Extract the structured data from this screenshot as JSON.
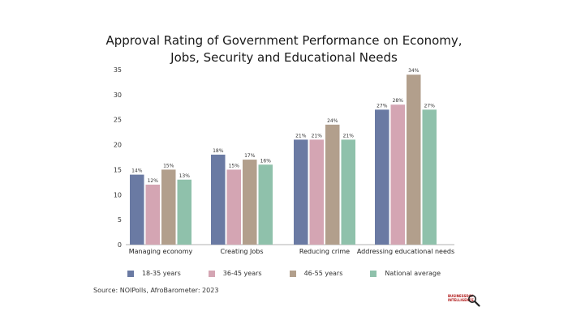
{
  "chart_data": {
    "type": "bar",
    "title_lines": [
      "Approval Rating of Government Performance  on Economy,",
      "Jobs, Security and Educational Needs"
    ],
    "categories": [
      "Managing economy",
      "Creating Jobs",
      "Reducing crime",
      "Addressing educational needs"
    ],
    "series": [
      {
        "name": "18-35 years",
        "color": "#6a7aa3",
        "values": [
          14,
          18,
          21,
          27
        ],
        "labels": [
          "14%",
          "18%",
          "21%",
          "27%"
        ]
      },
      {
        "name": "36-45 years",
        "color": "#d4a5b3",
        "values": [
          12,
          15,
          21,
          28
        ],
        "labels": [
          "12%",
          "15%",
          "21%",
          "28%"
        ]
      },
      {
        "name": "46-55 years",
        "color": "#b29f8c",
        "values": [
          15,
          17,
          24,
          34
        ],
        "labels": [
          "15%",
          "17%",
          "24%",
          "34%"
        ]
      },
      {
        "name": "National average",
        "color": "#8fc1ab",
        "values": [
          13,
          16,
          21,
          27
        ],
        "labels": [
          "13%",
          "16%",
          "21%",
          "27%"
        ]
      }
    ],
    "ylim": [
      0,
      35
    ],
    "yticks": [
      "0",
      "5",
      "10",
      "15",
      "20",
      "25",
      "30",
      "35"
    ],
    "grid": false,
    "legend": "bottom"
  },
  "source": "Source: NOIPolls, AfroBarometer: 2023",
  "logo": {
    "line1": "BUSINESSDAY",
    "line2": "INTELLIGENCE",
    "icon": "magnifier-icon"
  }
}
